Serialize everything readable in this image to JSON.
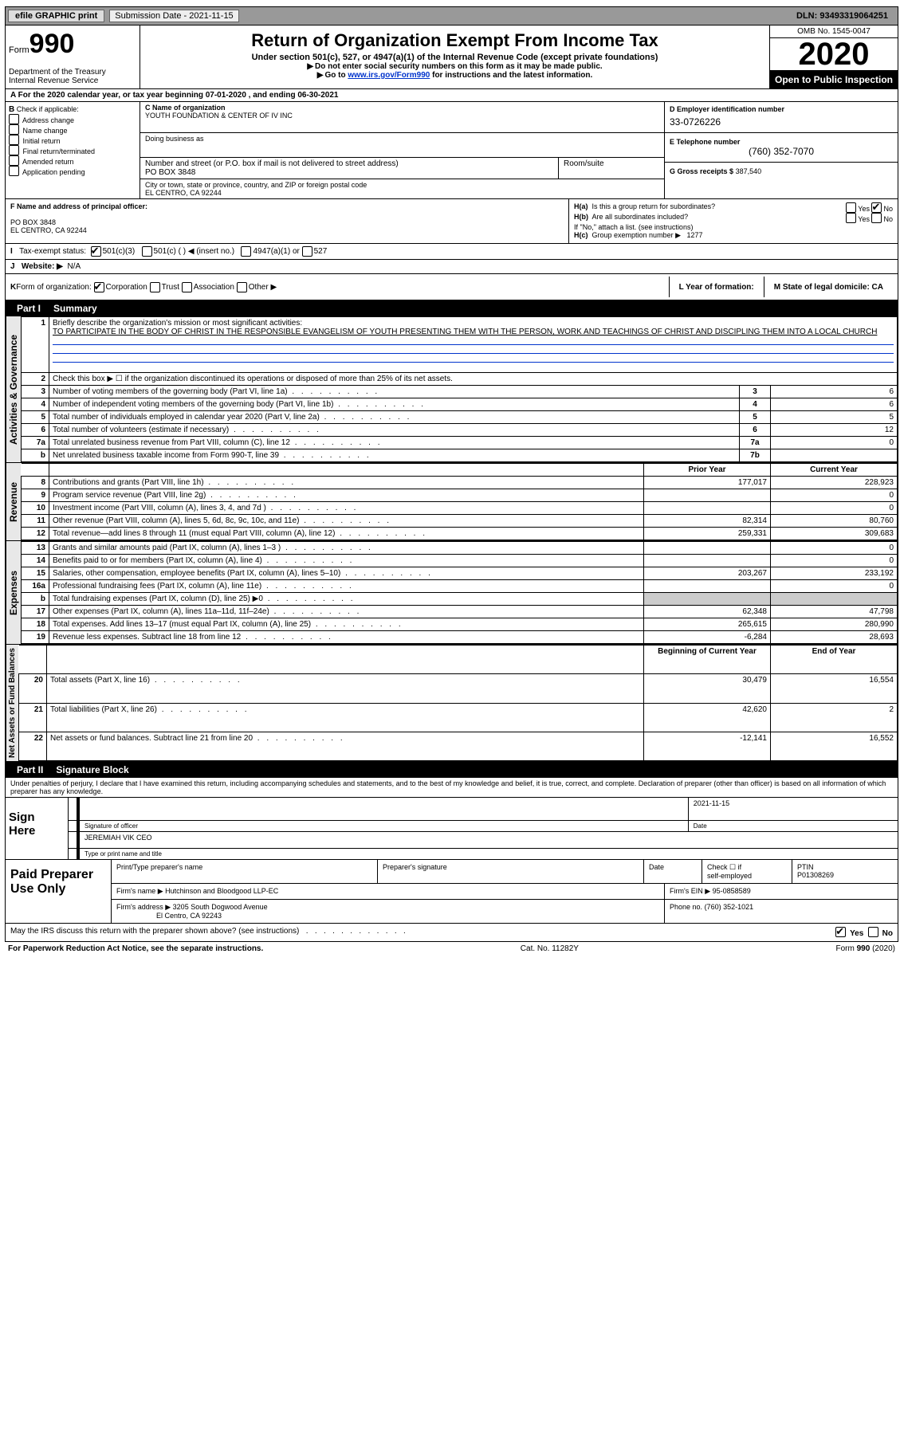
{
  "top": {
    "efile": "efile GRAPHIC print",
    "submission_label": "Submission Date - 2021-11-15",
    "dln": "DLN: 93493319064251"
  },
  "header": {
    "form_prefix": "Form",
    "form_no": "990",
    "dept1": "Department of the Treasury",
    "dept2": "Internal Revenue Service",
    "title": "Return of Organization Exempt From Income Tax",
    "sub": "Under section 501(c), 527, or 4947(a)(1) of the Internal Revenue Code (except private foundations)",
    "warn": "Do not enter social security numbers on this form as it may be made public.",
    "goto_pre": "Go to ",
    "goto_link": "www.irs.gov/Form990",
    "goto_post": " for instructions and the latest information.",
    "omb": "OMB No. 1545-0047",
    "year": "2020",
    "open": "Open to Public Inspection"
  },
  "A": {
    "text": "For the 2020 calendar year, or tax year beginning 07-01-2020   , and ending 06-30-2021"
  },
  "B": {
    "hdr": "B",
    "label": "Check if applicable:",
    "opts": [
      "Address change",
      "Name change",
      "Initial return",
      "Final return/terminated",
      "Amended return",
      "Application pending"
    ]
  },
  "C": {
    "name_hdr": "C Name of organization",
    "name": "YOUTH FOUNDATION & CENTER OF IV INC",
    "dba_hdr": "Doing business as",
    "addr_hdr": "Number and street (or P.O. box if mail is not delivered to street address)",
    "room_hdr": "Room/suite",
    "addr": "PO BOX 3848",
    "city_hdr": "City or town, state or province, country, and ZIP or foreign postal code",
    "city": "EL CENTRO, CA  92244"
  },
  "D": {
    "hdr": "D Employer identification number",
    "ein": "33-0726226",
    "tel_hdr": "E Telephone number",
    "tel": "(760) 352-7070",
    "gross_hdr": "G Gross receipts $",
    "gross": "387,540"
  },
  "F": {
    "hdr": "F  Name and address of principal officer:",
    "l1": "PO BOX 3848",
    "l2": "EL CENTRO, CA  92244"
  },
  "H": {
    "a_q": "Is this a group return for subordinates?",
    "b_q": "Are all subordinates included?",
    "b_note": "If \"No,\" attach a list. (see instructions)",
    "c_label": "Group exemption number ▶",
    "c_val": "1277",
    "yes": "Yes",
    "no": "No"
  },
  "I": {
    "label": "Tax-exempt status:",
    "o1": "501(c)(3)",
    "o2": "501(c) (  ) ◀ (insert no.)",
    "o3": "4947(a)(1) or",
    "o4": "527"
  },
  "J": {
    "label": "Website: ▶",
    "val": "N/A"
  },
  "K": {
    "label": "Form of organization:",
    "opts": [
      "Corporation",
      "Trust",
      "Association",
      "Other ▶"
    ],
    "L": "L Year of formation:",
    "M": "M State of legal domicile: CA"
  },
  "partI": {
    "num": "Part I",
    "title": "Summary",
    "side_gov": "Activities & Governance",
    "side_rev": "Revenue",
    "side_exp": "Expenses",
    "side_net": "Net Assets or Fund Balances",
    "l1": "Briefly describe the organization's mission or most significant activities:",
    "mission": "TO PARTICIPATE IN THE BODY OF CHRIST IN THE RESPONSIBLE EVANGELISM OF YOUTH PRESENTING THEM WITH THE PERSON, WORK AND TEACHINGS OF CHRIST AND DISCIPLING THEM INTO A LOCAL CHURCH",
    "l2": "Check this box ▶ ☐  if the organization discontinued its operations or disposed of more than 25% of its net assets.",
    "rows_gov": [
      {
        "n": "3",
        "d": "Number of voting members of the governing body (Part VI, line 1a)",
        "k": "3",
        "v": "6"
      },
      {
        "n": "4",
        "d": "Number of independent voting members of the governing body (Part VI, line 1b)",
        "k": "4",
        "v": "6"
      },
      {
        "n": "5",
        "d": "Total number of individuals employed in calendar year 2020 (Part V, line 2a)",
        "k": "5",
        "v": "5"
      },
      {
        "n": "6",
        "d": "Total number of volunteers (estimate if necessary)",
        "k": "6",
        "v": "12"
      },
      {
        "n": "7a",
        "d": "Total unrelated business revenue from Part VIII, column (C), line 12",
        "k": "7a",
        "v": "0"
      },
      {
        "n": "b",
        "d": "Net unrelated business taxable income from Form 990-T, line 39",
        "k": "7b",
        "v": ""
      }
    ],
    "hdr_prior": "Prior Year",
    "hdr_curr": "Current Year",
    "rows_rev": [
      {
        "n": "8",
        "d": "Contributions and grants (Part VIII, line 1h)",
        "p": "177,017",
        "c": "228,923"
      },
      {
        "n": "9",
        "d": "Program service revenue (Part VIII, line 2g)",
        "p": "",
        "c": "0"
      },
      {
        "n": "10",
        "d": "Investment income (Part VIII, column (A), lines 3, 4, and 7d )",
        "p": "",
        "c": "0"
      },
      {
        "n": "11",
        "d": "Other revenue (Part VIII, column (A), lines 5, 6d, 8c, 9c, 10c, and 11e)",
        "p": "82,314",
        "c": "80,760"
      },
      {
        "n": "12",
        "d": "Total revenue—add lines 8 through 11 (must equal Part VIII, column (A), line 12)",
        "p": "259,331",
        "c": "309,683"
      }
    ],
    "rows_exp": [
      {
        "n": "13",
        "d": "Grants and similar amounts paid (Part IX, column (A), lines 1–3 )",
        "p": "",
        "c": "0"
      },
      {
        "n": "14",
        "d": "Benefits paid to or for members (Part IX, column (A), line 4)",
        "p": "",
        "c": "0"
      },
      {
        "n": "15",
        "d": "Salaries, other compensation, employee benefits (Part IX, column (A), lines 5–10)",
        "p": "203,267",
        "c": "233,192"
      },
      {
        "n": "16a",
        "d": "Professional fundraising fees (Part IX, column (A), line 11e)",
        "p": "",
        "c": "0"
      },
      {
        "n": "b",
        "d": "Total fundraising expenses (Part IX, column (D), line 25) ▶0",
        "p": "grey",
        "c": "grey"
      },
      {
        "n": "17",
        "d": "Other expenses (Part IX, column (A), lines 11a–11d, 11f–24e)",
        "p": "62,348",
        "c": "47,798"
      },
      {
        "n": "18",
        "d": "Total expenses. Add lines 13–17 (must equal Part IX, column (A), line 25)",
        "p": "265,615",
        "c": "280,990"
      },
      {
        "n": "19",
        "d": "Revenue less expenses. Subtract line 18 from line 12",
        "p": "-6,284",
        "c": "28,693"
      }
    ],
    "hdr_beg": "Beginning of Current Year",
    "hdr_end": "End of Year",
    "rows_net": [
      {
        "n": "20",
        "d": "Total assets (Part X, line 16)",
        "p": "30,479",
        "c": "16,554"
      },
      {
        "n": "21",
        "d": "Total liabilities (Part X, line 26)",
        "p": "42,620",
        "c": "2"
      },
      {
        "n": "22",
        "d": "Net assets or fund balances. Subtract line 21 from line 20",
        "p": "-12,141",
        "c": "16,552"
      }
    ]
  },
  "partII": {
    "num": "Part II",
    "title": "Signature Block",
    "pen": "Under penalties of perjury, I declare that I have examined this return, including accompanying schedules and statements, and to the best of my knowledge and belief, it is true, correct, and complete. Declaration of preparer (other than officer) is based on all information of which preparer has any knowledge.",
    "sign": "Sign Here",
    "date": "2021-11-15",
    "sig_lbl": "Signature of officer",
    "date_lbl": "Date",
    "name": "JEREMIAH VIK CEO",
    "name_lbl": "Type or print name and title"
  },
  "prep": {
    "label": "Paid Preparer Use Only",
    "h1": "Print/Type preparer's name",
    "h2": "Preparer's signature",
    "h3": "Date",
    "h4_a": "Check ☐ if",
    "h4_b": "self-employed",
    "h5": "PTIN",
    "ptin": "P01308269",
    "firm_l": "Firm's name   ▶",
    "firm": "Hutchinson and Bloodgood LLP-EC",
    "ein_l": "Firm's EIN ▶",
    "ein": "95-0858589",
    "addr_l": "Firm's address ▶",
    "addr1": "3205 South Dogwood Avenue",
    "addr2": "El Centro, CA  92243",
    "ph_l": "Phone no.",
    "ph": "(760) 352-1021"
  },
  "discuss": {
    "q": "May the IRS discuss this return with the preparer shown above? (see instructions)",
    "yes": "Yes",
    "no": "No"
  },
  "footer": {
    "l": "For Paperwork Reduction Act Notice, see the separate instructions.",
    "c": "Cat. No. 11282Y",
    "r": "Form 990 (2020)"
  }
}
